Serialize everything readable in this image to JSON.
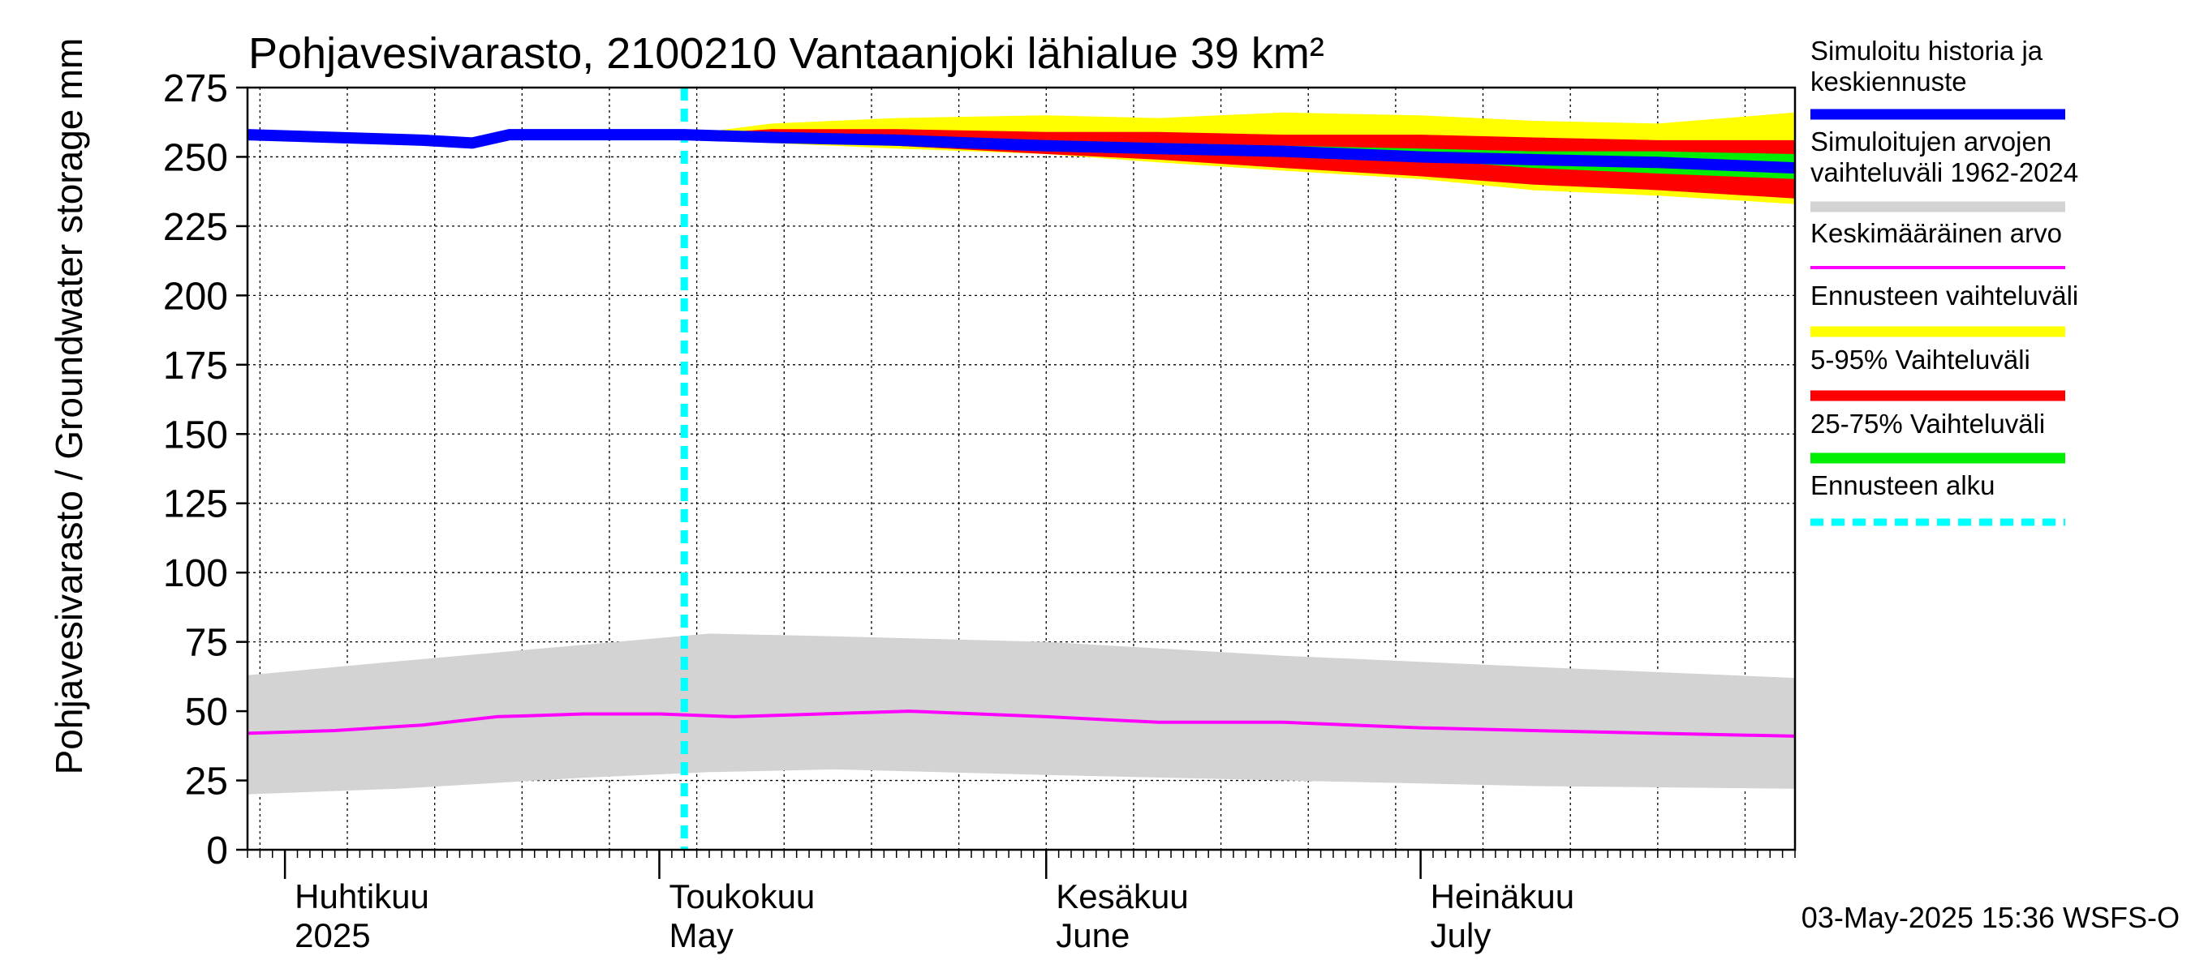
{
  "chart_data": {
    "type": "area",
    "title": "Pohjavesivarasto, 2100210 Vantaanjoki lähialue 39 km²",
    "ylabel": "Pohjavesivarasto / Groundwater storage",
    "yunit": "mm",
    "ylim": [
      0,
      275
    ],
    "yticks": [
      0,
      25,
      50,
      75,
      100,
      125,
      150,
      175,
      200,
      225,
      250,
      275
    ],
    "xlim": [
      "2025-03-29",
      "2025-07-31"
    ],
    "grid": true,
    "legend_position": "right",
    "forecast_start": "2025-05-03",
    "month_labels": [
      {
        "date": "2025-04-01",
        "fi": "Huhtikuu",
        "en": "2025"
      },
      {
        "date": "2025-05-01",
        "fi": "Toukokuu",
        "en": "May"
      },
      {
        "date": "2025-06-01",
        "fi": "Kesäkuu",
        "en": "June"
      },
      {
        "date": "2025-07-01",
        "fi": "Heinäkuu",
        "en": "July"
      }
    ],
    "series": [
      {
        "name": "Simuloitujen arvojen vaihteluväli 1962-2024",
        "kind": "band",
        "color": "#d3d3d3",
        "x": [
          "2025-03-29",
          "2025-04-10",
          "2025-04-25",
          "2025-05-05",
          "2025-05-15",
          "2025-06-01",
          "2025-06-20",
          "2025-07-10",
          "2025-07-31"
        ],
        "lower": [
          20,
          22,
          26,
          28,
          29,
          27,
          25,
          23,
          22
        ],
        "upper": [
          63,
          68,
          74,
          78,
          77,
          75,
          70,
          66,
          62
        ]
      },
      {
        "name": "Keskimääräinen arvo",
        "kind": "line",
        "color": "#ff00ff",
        "x": [
          "2025-03-29",
          "2025-04-05",
          "2025-04-12",
          "2025-04-18",
          "2025-04-25",
          "2025-05-01",
          "2025-05-07",
          "2025-05-14",
          "2025-05-21",
          "2025-06-01",
          "2025-06-10",
          "2025-06-20",
          "2025-07-01",
          "2025-07-10",
          "2025-07-20",
          "2025-07-31"
        ],
        "y": [
          42,
          43,
          45,
          48,
          49,
          49,
          48,
          49,
          50,
          48,
          46,
          46,
          44,
          43,
          42,
          41
        ]
      },
      {
        "name": "Ennusteen vaihteluväli",
        "kind": "band",
        "color": "#ffff00",
        "x": [
          "2025-05-03",
          "2025-05-10",
          "2025-05-20",
          "2025-06-01",
          "2025-06-10",
          "2025-06-20",
          "2025-07-01",
          "2025-07-10",
          "2025-07-20",
          "2025-07-31"
        ],
        "lower": [
          257,
          255,
          253,
          251,
          248,
          245,
          242,
          238,
          236,
          233
        ],
        "upper": [
          258,
          262,
          264,
          265,
          264,
          266,
          265,
          263,
          262,
          266
        ]
      },
      {
        "name": "5-95% Vaihteluväli",
        "kind": "band",
        "color": "#ff0000",
        "x": [
          "2025-05-03",
          "2025-05-10",
          "2025-05-20",
          "2025-06-01",
          "2025-06-10",
          "2025-06-20",
          "2025-07-01",
          "2025-07-10",
          "2025-07-20",
          "2025-07-31"
        ],
        "lower": [
          257,
          256,
          254,
          251,
          249,
          246,
          243,
          240,
          238,
          235
        ],
        "upper": [
          258,
          260,
          260,
          259,
          259,
          258,
          258,
          257,
          256,
          256
        ]
      },
      {
        "name": "25-75% Vaihteluväli",
        "kind": "band",
        "color": "#00ee00",
        "x": [
          "2025-05-03",
          "2025-05-20",
          "2025-06-01",
          "2025-06-10",
          "2025-06-20",
          "2025-07-01",
          "2025-07-10",
          "2025-07-20",
          "2025-07-31"
        ],
        "lower": [
          257,
          256,
          254,
          253,
          251,
          249,
          246,
          244,
          242
        ],
        "upper": [
          257,
          257,
          256,
          255,
          254,
          253,
          252,
          252,
          251
        ]
      },
      {
        "name": "Simuloitu historia ja keskiennuste",
        "kind": "line",
        "color": "#0000ff",
        "x": [
          "2025-03-29",
          "2025-04-05",
          "2025-04-12",
          "2025-04-16",
          "2025-04-19",
          "2025-04-25",
          "2025-05-03",
          "2025-05-10",
          "2025-05-20",
          "2025-06-01",
          "2025-06-10",
          "2025-06-20",
          "2025-07-01",
          "2025-07-10",
          "2025-07-20",
          "2025-07-31"
        ],
        "y": [
          258,
          257,
          256,
          255,
          258,
          258,
          258,
          257,
          256,
          254,
          253,
          252,
          250,
          249,
          248,
          246
        ]
      }
    ]
  },
  "legend": [
    {
      "lines": [
        "Simuloitu historia ja",
        "keskiennuste"
      ],
      "color": "#0000ff",
      "style": "solid"
    },
    {
      "lines": [
        "Simuloitujen arvojen",
        "vaihteluväli 1962-2024"
      ],
      "color": "#d3d3d3",
      "style": "solid"
    },
    {
      "lines": [
        "Keskimääräinen arvo"
      ],
      "color": "#ff00ff",
      "style": "thin"
    },
    {
      "lines": [
        "Ennusteen vaihteluväli"
      ],
      "color": "#ffff00",
      "style": "solid"
    },
    {
      "lines": [
        "5-95% Vaihteluväli"
      ],
      "color": "#ff0000",
      "style": "solid"
    },
    {
      "lines": [
        "25-75% Vaihteluväli"
      ],
      "color": "#00ee00",
      "style": "solid"
    },
    {
      "lines": [
        "Ennusteen alku"
      ],
      "color": "#00ffff",
      "style": "dashed"
    }
  ],
  "footer": "03-May-2025 15:36 WSFS-O"
}
